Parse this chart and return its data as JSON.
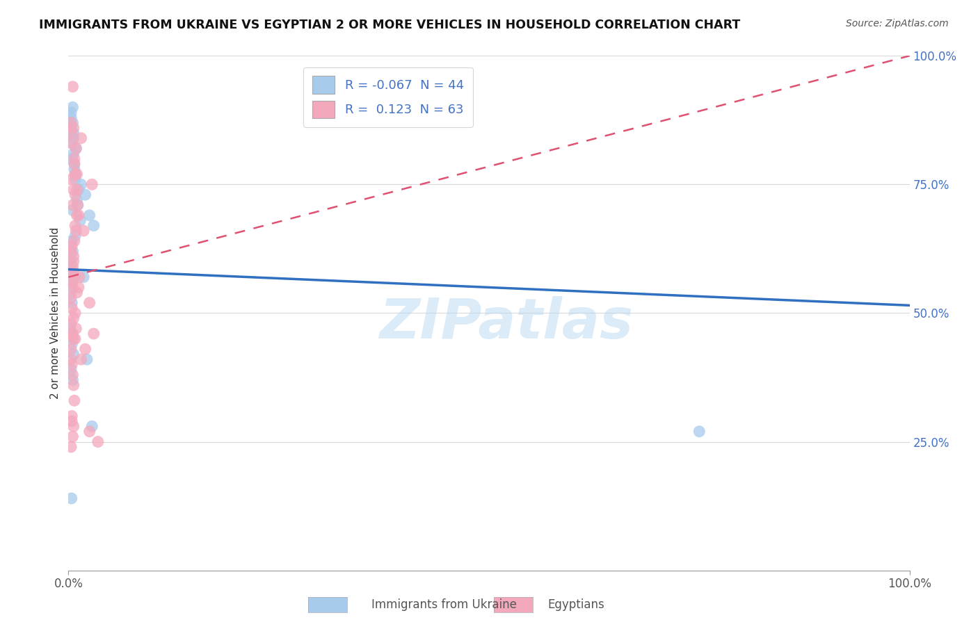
{
  "title": "IMMIGRANTS FROM UKRAINE VS EGYPTIAN 2 OR MORE VEHICLES IN HOUSEHOLD CORRELATION CHART",
  "source": "Source: ZipAtlas.com",
  "ylabel": "2 or more Vehicles in Household",
  "xlabel_ukraine": "Immigrants from Ukraine",
  "xlabel_egyptian": "Egyptians",
  "watermark": "ZIPatlas",
  "ukraine_R": -0.067,
  "ukraine_N": 44,
  "egyptian_R": 0.123,
  "egyptian_N": 63,
  "ukraine_color": "#a8caeb",
  "egyptian_color": "#f4a8bc",
  "ukraine_line_color": "#3070c0",
  "egyptian_line_color": "#e05070",
  "background_color": "#ffffff",
  "grid_color": "#d8d8d8",
  "xlim": [
    0.0,
    100.0
  ],
  "ylim": [
    0.0,
    100.0
  ],
  "ukraine_x": [
    0.3,
    0.5,
    0.8,
    1.0,
    1.5,
    2.0,
    2.5,
    3.0,
    0.4,
    0.6,
    0.9,
    1.2,
    0.3,
    0.5,
    0.7,
    0.4,
    0.6,
    0.8,
    1.1,
    0.3,
    0.5,
    0.7,
    0.4,
    0.6,
    0.3,
    0.5,
    0.4,
    0.3,
    0.6,
    0.8,
    1.4,
    0.4,
    0.5,
    0.3,
    1.8,
    0.2,
    0.4,
    0.6,
    2.2,
    0.3,
    0.5,
    2.8,
    0.35,
    75.0
  ],
  "ukraine_y": [
    60,
    70,
    65,
    72,
    75,
    73,
    69,
    67,
    80,
    84,
    82,
    74,
    88,
    62,
    78,
    64,
    58,
    76,
    71,
    86,
    87,
    79,
    83,
    85,
    89,
    90,
    56,
    54,
    81,
    77,
    68,
    52,
    57,
    59,
    57,
    47,
    44,
    42,
    41,
    39,
    37,
    28,
    14,
    27
  ],
  "egyptian_x": [
    0.5,
    1.5,
    2.8,
    0.8,
    0.3,
    0.6,
    0.7,
    0.4,
    1.0,
    0.9,
    1.2,
    1.8,
    0.5,
    0.6,
    0.3,
    0.4,
    0.7,
    0.8,
    1.0,
    1.1,
    0.4,
    0.5,
    0.6,
    0.3,
    0.7,
    0.9,
    1.3,
    0.5,
    0.6,
    0.4,
    0.8,
    1.0,
    0.3,
    0.5,
    0.7,
    0.9,
    0.6,
    0.4,
    0.3,
    0.8,
    1.5,
    2.0,
    0.5,
    0.4,
    0.6,
    0.7,
    0.3,
    0.5,
    0.8,
    1.0,
    1.2,
    0.4,
    0.6,
    0.3,
    2.5,
    3.0,
    0.4,
    0.6,
    0.5,
    0.3,
    0.4,
    2.5,
    3.5
  ],
  "egyptian_y": [
    94,
    84,
    75,
    73,
    87,
    86,
    80,
    76,
    77,
    82,
    69,
    66,
    71,
    74,
    85,
    83,
    79,
    77,
    74,
    71,
    56,
    58,
    60,
    62,
    64,
    66,
    57,
    59,
    61,
    63,
    67,
    69,
    53,
    55,
    57,
    47,
    49,
    51,
    43,
    45,
    41,
    43,
    38,
    40,
    36,
    33,
    41,
    46,
    50,
    54,
    55,
    46,
    45,
    48,
    52,
    46,
    30,
    28,
    26,
    24,
    29,
    27,
    25
  ],
  "ukraine_trend_x": [
    0,
    100
  ],
  "ukraine_trend_y": [
    58.5,
    51.5
  ],
  "egyptian_trend_x": [
    0,
    100
  ],
  "egyptian_trend_y": [
    57.0,
    100.0
  ],
  "yticks": [
    25,
    50,
    75,
    100
  ],
  "ytick_labels": [
    "25.0%",
    "50.0%",
    "75.0%",
    "100.0%"
  ]
}
